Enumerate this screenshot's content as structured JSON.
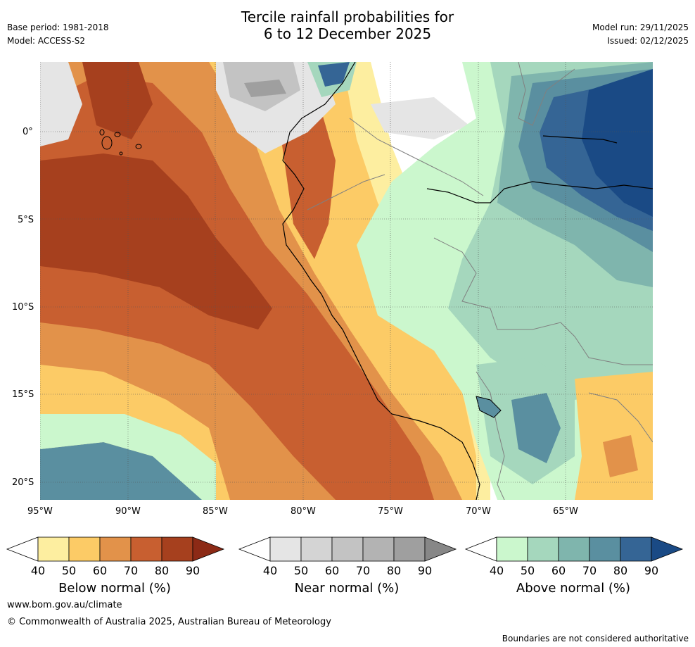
{
  "header": {
    "title_line1": "Tercile rainfall probabilities for",
    "title_line2": "6 to 12 December 2025",
    "base_period": "Base period: 1981-2018",
    "model": "Model: ACCESS-S2",
    "model_run": "Model run: 29/11/2025",
    "issued": "Issued: 02/12/2025"
  },
  "axes": {
    "lat_labels": [
      "0°",
      "5°S",
      "10°S",
      "15°S",
      "20°S"
    ],
    "lon_labels": [
      "95°W",
      "90°W",
      "85°W",
      "80°W",
      "75°W",
      "70°W",
      "65°W"
    ]
  },
  "legends": [
    {
      "label": "Below normal (%)",
      "ticks": [
        "40",
        "50",
        "60",
        "70",
        "80",
        "90"
      ],
      "colors": [
        "#ffffff",
        "#fdeea0",
        "#fccb66",
        "#e2924a",
        "#c85f30",
        "#a6401e",
        "#8c2a16"
      ]
    },
    {
      "label": "Near normal (%)",
      "ticks": [
        "40",
        "50",
        "60",
        "70",
        "80",
        "90"
      ],
      "colors": [
        "#ffffff",
        "#e5e5e5",
        "#d4d4d4",
        "#c3c3c3",
        "#b3b3b3",
        "#9f9f9f",
        "#878787"
      ]
    },
    {
      "label": "Above normal (%)",
      "ticks": [
        "40",
        "50",
        "60",
        "70",
        "80",
        "90"
      ],
      "colors": [
        "#ffffff",
        "#cbf7cd",
        "#a5d7bd",
        "#7fb5ad",
        "#5a8fa0",
        "#356595",
        "#1a4a85"
      ]
    }
  ],
  "footer": {
    "website": "www.bom.gov.au/climate",
    "copyright": "© Commonwealth of Australia 2025, Australian Bureau of Meteorology",
    "disclaimer": "Boundaries are not considered authoritative"
  }
}
